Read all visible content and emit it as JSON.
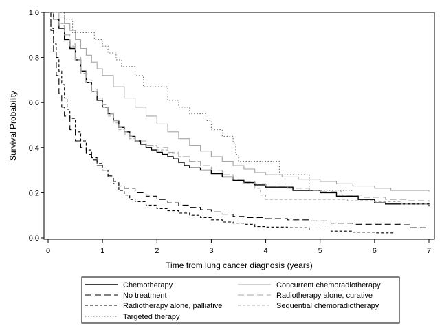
{
  "chart_data": {
    "type": "line",
    "xlabel": "Time from lung cancer diagnosis (years)",
    "ylabel": "Survival Probability",
    "xlim": [
      0,
      7
    ],
    "ylim": [
      0,
      1
    ],
    "x_ticks": [
      0,
      1,
      2,
      3,
      4,
      5,
      6,
      7
    ],
    "y_ticks": [
      "0.0",
      "0.2",
      "0.4",
      "0.6",
      "0.8",
      "1.0"
    ],
    "grid": false,
    "legend_placement": "bottom",
    "series": [
      {
        "name": "Chemotherapy",
        "color": "#000000",
        "style": "solid",
        "points": [
          [
            0,
            1.0
          ],
          [
            0.1,
            0.97
          ],
          [
            0.2,
            0.93
          ],
          [
            0.3,
            0.88
          ],
          [
            0.4,
            0.84
          ],
          [
            0.5,
            0.79
          ],
          [
            0.6,
            0.74
          ],
          [
            0.7,
            0.69
          ],
          [
            0.8,
            0.65
          ],
          [
            0.9,
            0.61
          ],
          [
            1.0,
            0.58
          ],
          [
            1.1,
            0.55
          ],
          [
            1.2,
            0.52
          ],
          [
            1.3,
            0.49
          ],
          [
            1.4,
            0.47
          ],
          [
            1.5,
            0.45
          ],
          [
            1.6,
            0.43
          ],
          [
            1.7,
            0.415
          ],
          [
            1.8,
            0.4
          ],
          [
            1.9,
            0.39
          ],
          [
            2.0,
            0.38
          ],
          [
            2.1,
            0.37
          ],
          [
            2.2,
            0.36
          ],
          [
            2.3,
            0.35
          ],
          [
            2.4,
            0.335
          ],
          [
            2.5,
            0.32
          ],
          [
            2.6,
            0.31
          ],
          [
            2.8,
            0.3
          ],
          [
            3.0,
            0.285
          ],
          [
            3.2,
            0.27
          ],
          [
            3.4,
            0.255
          ],
          [
            3.6,
            0.245
          ],
          [
            3.8,
            0.235
          ],
          [
            4.0,
            0.225
          ],
          [
            4.5,
            0.21
          ],
          [
            5.0,
            0.2
          ],
          [
            5.3,
            0.185
          ],
          [
            5.7,
            0.17
          ],
          [
            6.0,
            0.155
          ],
          [
            6.2,
            0.15
          ],
          [
            7.0,
            0.14
          ]
        ]
      },
      {
        "name": "Concurrent chemoradiotherapy",
        "color": "#a6a6a6",
        "style": "solid",
        "points": [
          [
            0,
            1.0
          ],
          [
            0.2,
            0.98
          ],
          [
            0.3,
            0.95
          ],
          [
            0.4,
            0.92
          ],
          [
            0.5,
            0.88
          ],
          [
            0.6,
            0.84
          ],
          [
            0.7,
            0.81
          ],
          [
            0.8,
            0.78
          ],
          [
            0.9,
            0.75
          ],
          [
            1.0,
            0.72
          ],
          [
            1.2,
            0.67
          ],
          [
            1.4,
            0.62
          ],
          [
            1.6,
            0.58
          ],
          [
            1.8,
            0.54
          ],
          [
            2.0,
            0.505
          ],
          [
            2.2,
            0.47
          ],
          [
            2.4,
            0.44
          ],
          [
            2.6,
            0.41
          ],
          [
            2.8,
            0.385
          ],
          [
            3.0,
            0.36
          ],
          [
            3.2,
            0.34
          ],
          [
            3.4,
            0.32
          ],
          [
            3.6,
            0.305
          ],
          [
            3.8,
            0.29
          ],
          [
            4.0,
            0.28
          ],
          [
            4.3,
            0.27
          ],
          [
            4.6,
            0.26
          ],
          [
            5.0,
            0.25
          ],
          [
            5.3,
            0.24
          ],
          [
            5.6,
            0.23
          ],
          [
            6.0,
            0.22
          ],
          [
            6.3,
            0.21
          ],
          [
            7.0,
            0.205
          ]
        ]
      },
      {
        "name": "No treatment",
        "color": "#000000",
        "style": "longdash",
        "points": [
          [
            0,
            1.0
          ],
          [
            0.05,
            0.92
          ],
          [
            0.1,
            0.82
          ],
          [
            0.15,
            0.72
          ],
          [
            0.2,
            0.64
          ],
          [
            0.25,
            0.58
          ],
          [
            0.3,
            0.54
          ],
          [
            0.4,
            0.48
          ],
          [
            0.5,
            0.43
          ],
          [
            0.6,
            0.4
          ],
          [
            0.7,
            0.37
          ],
          [
            0.8,
            0.345
          ],
          [
            0.9,
            0.32
          ],
          [
            1.0,
            0.3
          ],
          [
            1.1,
            0.275
          ],
          [
            1.2,
            0.25
          ],
          [
            1.3,
            0.23
          ],
          [
            1.4,
            0.22
          ],
          [
            1.6,
            0.2
          ],
          [
            1.8,
            0.185
          ],
          [
            2.0,
            0.17
          ],
          [
            2.2,
            0.155
          ],
          [
            2.4,
            0.145
          ],
          [
            2.6,
            0.135
          ],
          [
            2.8,
            0.125
          ],
          [
            3.0,
            0.115
          ],
          [
            3.2,
            0.105
          ],
          [
            3.4,
            0.095
          ],
          [
            3.6,
            0.09
          ],
          [
            4.0,
            0.085
          ],
          [
            4.4,
            0.08
          ],
          [
            4.8,
            0.075
          ],
          [
            5.2,
            0.065
          ],
          [
            5.6,
            0.06
          ],
          [
            6.0,
            0.06
          ],
          [
            6.5,
            0.058
          ],
          [
            6.65,
            0.045
          ],
          [
            7.0,
            0.045
          ]
        ]
      },
      {
        "name": "Radiotherapy alone, curative",
        "color": "#a6a6a6",
        "style": "longdash",
        "points": [
          [
            0,
            1.0
          ],
          [
            0.1,
            0.97
          ],
          [
            0.2,
            0.94
          ],
          [
            0.3,
            0.9
          ],
          [
            0.4,
            0.86
          ],
          [
            0.5,
            0.8
          ],
          [
            0.6,
            0.74
          ],
          [
            0.7,
            0.7
          ],
          [
            0.8,
            0.66
          ],
          [
            0.9,
            0.62
          ],
          [
            1.0,
            0.59
          ],
          [
            1.1,
            0.55
          ],
          [
            1.2,
            0.52
          ],
          [
            1.3,
            0.49
          ],
          [
            1.4,
            0.47
          ],
          [
            1.5,
            0.45
          ],
          [
            1.6,
            0.43
          ],
          [
            1.8,
            0.41
          ],
          [
            2.0,
            0.4
          ],
          [
            2.2,
            0.38
          ],
          [
            2.4,
            0.36
          ],
          [
            2.6,
            0.34
          ],
          [
            2.8,
            0.32
          ],
          [
            3.0,
            0.3
          ],
          [
            3.2,
            0.28
          ],
          [
            3.4,
            0.26
          ],
          [
            3.6,
            0.25
          ],
          [
            3.8,
            0.24
          ],
          [
            4.0,
            0.23
          ],
          [
            4.4,
            0.22
          ],
          [
            4.8,
            0.21
          ],
          [
            5.0,
            0.205
          ],
          [
            5.4,
            0.19
          ],
          [
            5.8,
            0.18
          ],
          [
            6.2,
            0.17
          ],
          [
            6.6,
            0.165
          ],
          [
            7.0,
            0.16
          ]
        ]
      },
      {
        "name": "Radiotherapy alone, palliative",
        "color": "#000000",
        "style": "dash",
        "points": [
          [
            0,
            1.0
          ],
          [
            0.05,
            0.93
          ],
          [
            0.1,
            0.86
          ],
          [
            0.15,
            0.8
          ],
          [
            0.2,
            0.74
          ],
          [
            0.25,
            0.68
          ],
          [
            0.3,
            0.62
          ],
          [
            0.35,
            0.57
          ],
          [
            0.4,
            0.53
          ],
          [
            0.5,
            0.47
          ],
          [
            0.6,
            0.43
          ],
          [
            0.7,
            0.39
          ],
          [
            0.8,
            0.355
          ],
          [
            0.9,
            0.33
          ],
          [
            1.0,
            0.3
          ],
          [
            1.1,
            0.27
          ],
          [
            1.2,
            0.24
          ],
          [
            1.3,
            0.21
          ],
          [
            1.4,
            0.19
          ],
          [
            1.5,
            0.17
          ],
          [
            1.6,
            0.16
          ],
          [
            1.8,
            0.145
          ],
          [
            2.0,
            0.13
          ],
          [
            2.2,
            0.12
          ],
          [
            2.4,
            0.11
          ],
          [
            2.6,
            0.1
          ],
          [
            2.8,
            0.09
          ],
          [
            3.0,
            0.08
          ],
          [
            3.2,
            0.07
          ],
          [
            3.4,
            0.065
          ],
          [
            3.6,
            0.06
          ],
          [
            3.8,
            0.05
          ],
          [
            4.0,
            0.048
          ],
          [
            4.4,
            0.045
          ],
          [
            4.8,
            0.035
          ],
          [
            5.2,
            0.03
          ],
          [
            5.6,
            0.025
          ],
          [
            6.0,
            0.022
          ],
          [
            6.35,
            0.022
          ]
        ]
      },
      {
        "name": "Sequential chemoradiotherapy",
        "color": "#b0b0b0",
        "style": "dash",
        "points": [
          [
            0,
            1.0
          ],
          [
            0.1,
            0.98
          ],
          [
            0.2,
            0.95
          ],
          [
            0.3,
            0.9
          ],
          [
            0.4,
            0.85
          ],
          [
            0.5,
            0.79
          ],
          [
            0.6,
            0.73
          ],
          [
            0.7,
            0.69
          ],
          [
            0.8,
            0.65
          ],
          [
            0.9,
            0.62
          ],
          [
            1.0,
            0.58
          ],
          [
            1.1,
            0.54
          ],
          [
            1.2,
            0.51
          ],
          [
            1.3,
            0.48
          ],
          [
            1.4,
            0.46
          ],
          [
            1.5,
            0.44
          ],
          [
            1.6,
            0.43
          ],
          [
            1.8,
            0.41
          ],
          [
            2.0,
            0.39
          ],
          [
            2.2,
            0.375
          ],
          [
            2.4,
            0.36
          ],
          [
            2.6,
            0.34
          ],
          [
            2.8,
            0.32
          ],
          [
            3.0,
            0.3
          ],
          [
            3.2,
            0.28
          ],
          [
            3.4,
            0.26
          ],
          [
            3.6,
            0.24
          ],
          [
            3.8,
            0.22
          ],
          [
            3.9,
            0.19
          ],
          [
            4.0,
            0.17
          ],
          [
            4.5,
            0.17
          ],
          [
            5.0,
            0.17
          ],
          [
            5.5,
            0.165
          ],
          [
            6.0,
            0.16
          ],
          [
            6.5,
            0.15
          ],
          [
            7.0,
            0.145
          ]
        ]
      },
      {
        "name": "Targeted therapy",
        "color": "#707070",
        "style": "dot",
        "step": true,
        "points": [
          [
            0,
            1.0
          ],
          [
            0.3,
            0.97
          ],
          [
            0.45,
            0.91
          ],
          [
            0.85,
            0.88
          ],
          [
            1.0,
            0.85
          ],
          [
            1.1,
            0.82
          ],
          [
            1.25,
            0.79
          ],
          [
            1.35,
            0.76
          ],
          [
            1.6,
            0.72
          ],
          [
            1.75,
            0.67
          ],
          [
            2.2,
            0.61
          ],
          [
            2.4,
            0.58
          ],
          [
            2.6,
            0.55
          ],
          [
            2.9,
            0.52
          ],
          [
            3.0,
            0.48
          ],
          [
            3.2,
            0.45
          ],
          [
            3.4,
            0.42
          ],
          [
            3.45,
            0.37
          ],
          [
            3.5,
            0.34
          ],
          [
            4.25,
            0.28
          ],
          [
            4.8,
            0.21
          ],
          [
            5.6,
            0.21
          ]
        ]
      }
    ]
  },
  "legend": {
    "items": [
      {
        "label": "Chemotherapy",
        "series": 0
      },
      {
        "label": "Concurrent chemoradiotherapy",
        "series": 1
      },
      {
        "label": "No treatment",
        "series": 2
      },
      {
        "label": "Radiotherapy alone, curative",
        "series": 3
      },
      {
        "label": "Radiotherapy alone, palliative",
        "series": 4
      },
      {
        "label": "Sequential chemoradiotherapy",
        "series": 5
      },
      {
        "label": "Targeted therapy",
        "series": 6
      }
    ]
  }
}
